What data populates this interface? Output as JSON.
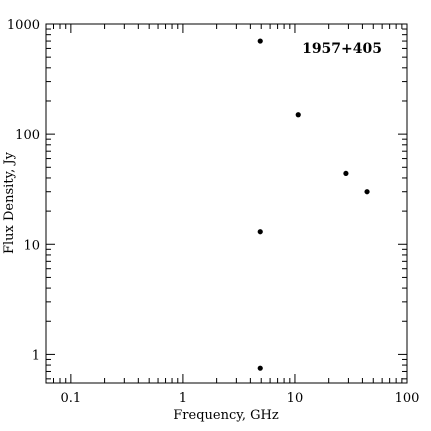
{
  "chart_data": {
    "type": "scatter",
    "title": "",
    "annotation": "1957+405",
    "xlabel": "Frequency, GHz",
    "ylabel": "Flux Density, Jy",
    "xscale": "log",
    "yscale": "log",
    "xlim": [
      0.06,
      100
    ],
    "ylim": [
      0.55,
      1000
    ],
    "grid": false,
    "x_tick_labels": [
      "0.1",
      "1",
      "10",
      "100"
    ],
    "y_tick_labels": [
      "1",
      "10",
      "100",
      "1000"
    ],
    "points": [
      {
        "x": 4.9,
        "y": 700
      },
      {
        "x": 10.7,
        "y": 150
      },
      {
        "x": 28.5,
        "y": 44
      },
      {
        "x": 44.0,
        "y": 30
      },
      {
        "x": 4.9,
        "y": 13
      },
      {
        "x": 4.9,
        "y": 0.75
      }
    ]
  }
}
